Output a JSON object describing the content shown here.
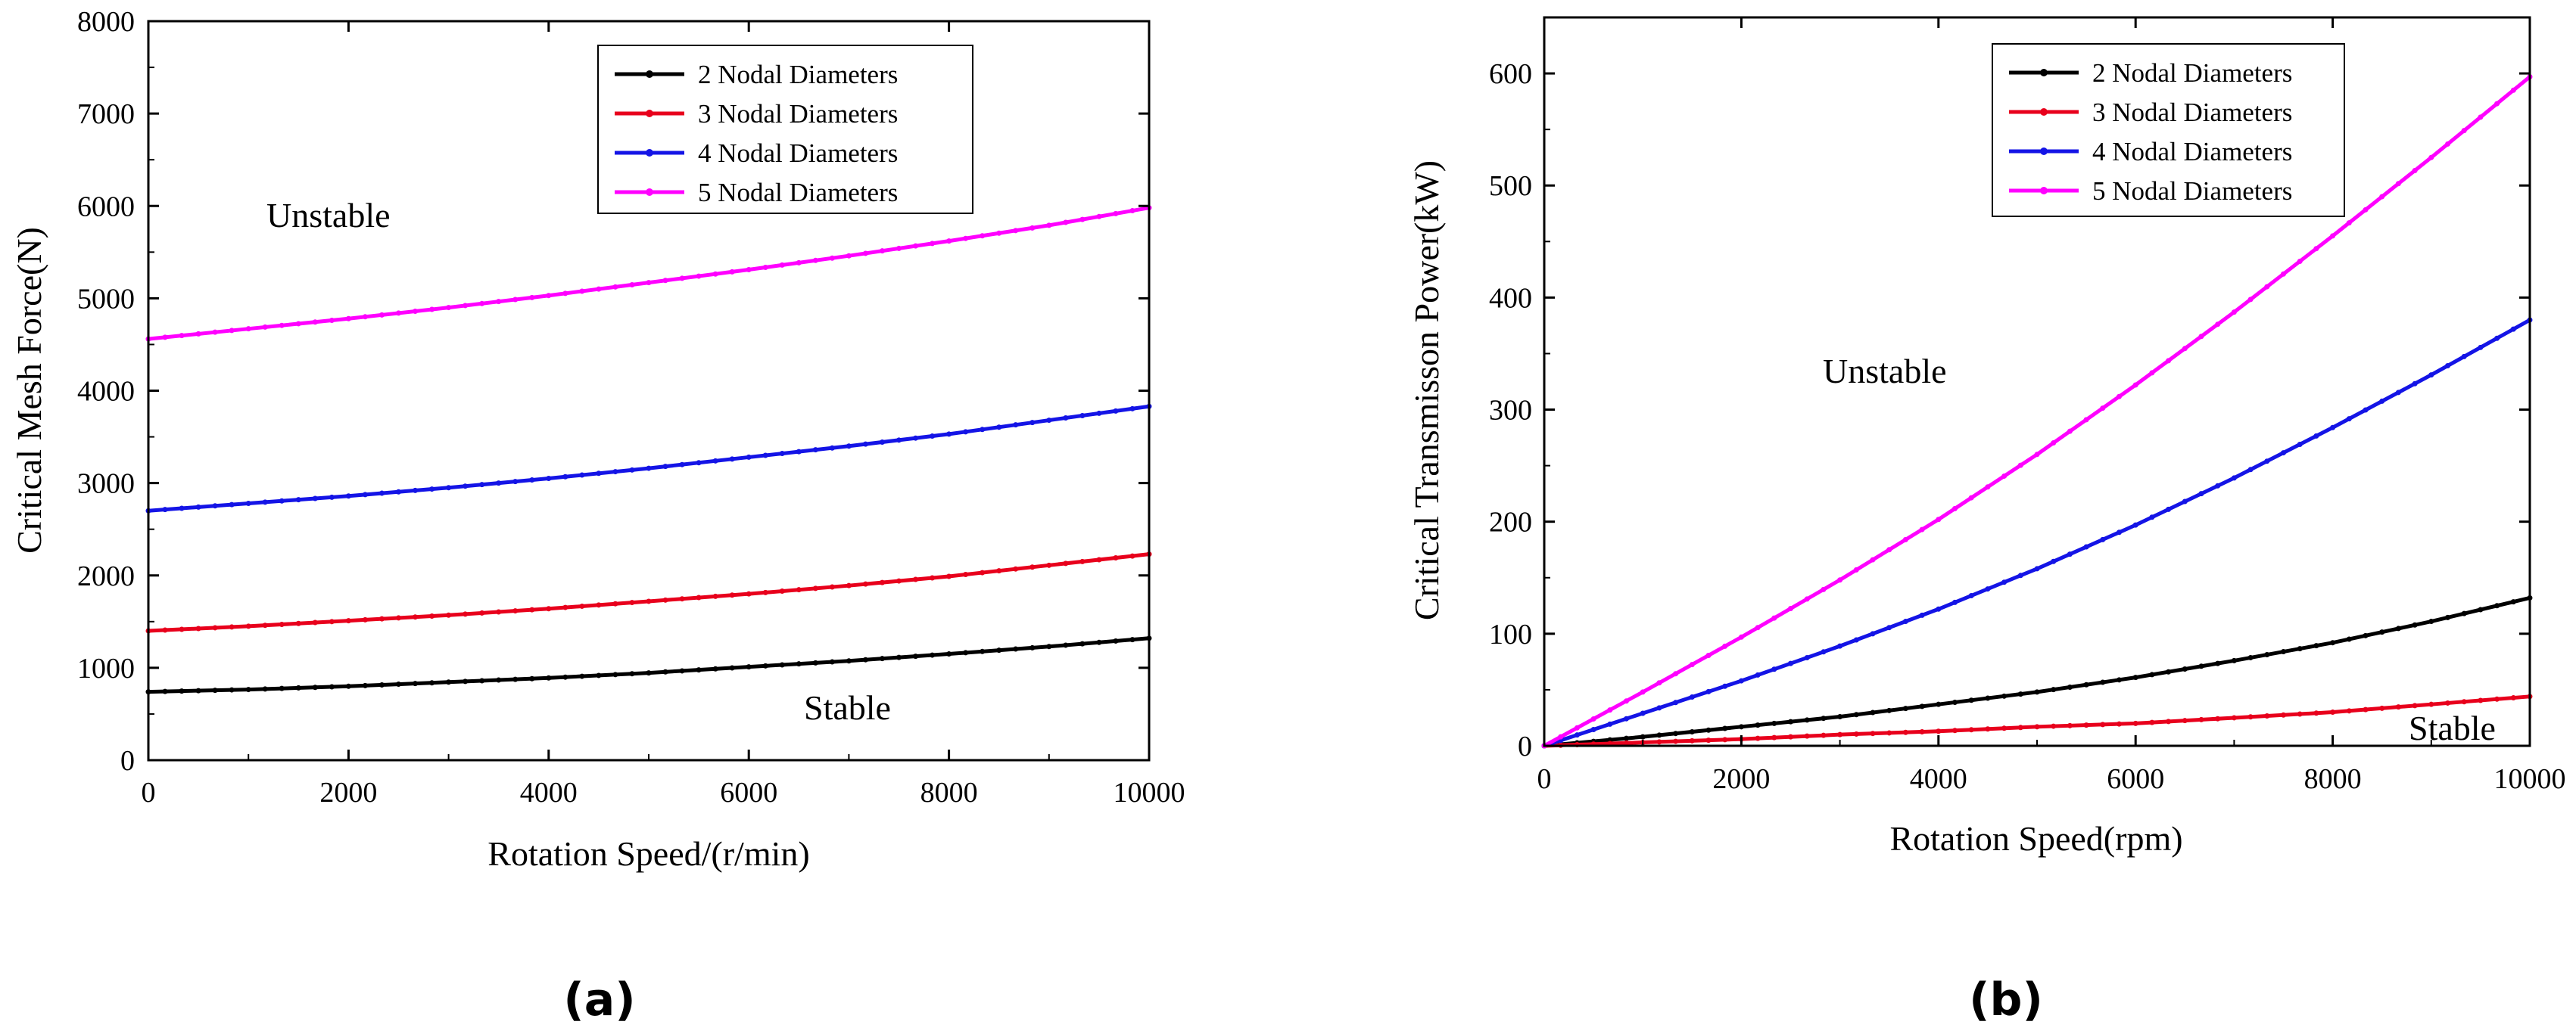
{
  "figure": {
    "panel_labels": [
      "(a)",
      "(b)"
    ]
  },
  "chart_data": [
    {
      "type": "line",
      "panel": "(a)",
      "title": "",
      "xlabel": "Rotation Speed/(r/min)",
      "ylabel": "Critical Mesh Force(N)",
      "xlim": [
        0,
        10000
      ],
      "ylim": [
        0,
        8000
      ],
      "xticks": [
        0,
        2000,
        4000,
        6000,
        8000,
        10000
      ],
      "yticks": [
        0,
        1000,
        2000,
        3000,
        4000,
        5000,
        6000,
        7000,
        8000
      ],
      "x": [
        0,
        1000,
        2000,
        3000,
        4000,
        5000,
        6000,
        7000,
        8000,
        9000,
        10000
      ],
      "series": [
        {
          "name": "2 Nodal Diameters",
          "color": "#000000",
          "values": [
            740,
            765,
            800,
            845,
            890,
            945,
            1010,
            1075,
            1150,
            1230,
            1320
          ]
        },
        {
          "name": "3 Nodal Diameters",
          "color": "#e8001c",
          "values": [
            1400,
            1450,
            1510,
            1570,
            1640,
            1720,
            1800,
            1890,
            1990,
            2110,
            2230
          ]
        },
        {
          "name": "4 Nodal Diameters",
          "color": "#1414e6",
          "values": [
            2700,
            2780,
            2860,
            2950,
            3050,
            3160,
            3280,
            3400,
            3530,
            3680,
            3830
          ]
        },
        {
          "name": "5 Nodal Diameters",
          "color": "#ff00ff",
          "values": [
            4560,
            4670,
            4780,
            4900,
            5030,
            5170,
            5310,
            5460,
            5620,
            5790,
            5980
          ]
        }
      ],
      "annotations": [
        "Unstable",
        "Stable"
      ],
      "legend_position": "top-right"
    },
    {
      "type": "line",
      "panel": "(b)",
      "title": "",
      "xlabel": "Rotation Speed(rpm)",
      "ylabel": "Critical Transmisson Power(kW)",
      "xlim": [
        0,
        10000
      ],
      "ylim": [
        0,
        650
      ],
      "xticks": [
        0,
        2000,
        4000,
        6000,
        8000,
        10000
      ],
      "yticks": [
        0,
        100,
        200,
        300,
        400,
        500,
        600
      ],
      "x": [
        0,
        1000,
        2000,
        3000,
        4000,
        5000,
        6000,
        7000,
        8000,
        9000,
        10000
      ],
      "series": [
        {
          "name": "2 Nodal Diameters",
          "color": "#000000",
          "values": [
            0,
            8,
            17,
            26,
            37,
            48,
            61,
            76,
            92,
            111,
            132
          ]
        },
        {
          "name": "3 Nodal Diameters",
          "color": "#e8001c",
          "values": [
            0,
            3,
            6,
            10,
            13,
            17,
            20,
            25,
            30,
            37,
            44
          ]
        },
        {
          "name": "4 Nodal Diameters",
          "color": "#1414e6",
          "values": [
            0,
            29,
            58,
            89,
            122,
            158,
            197,
            239,
            284,
            331,
            380
          ]
        },
        {
          "name": "5 Nodal Diameters",
          "color": "#ff00ff",
          "values": [
            0,
            48,
            97,
            148,
            202,
            260,
            322,
            387,
            455,
            525,
            597
          ]
        }
      ],
      "annotations": [
        "Unstable",
        "Stable"
      ],
      "legend_position": "top-left"
    }
  ]
}
